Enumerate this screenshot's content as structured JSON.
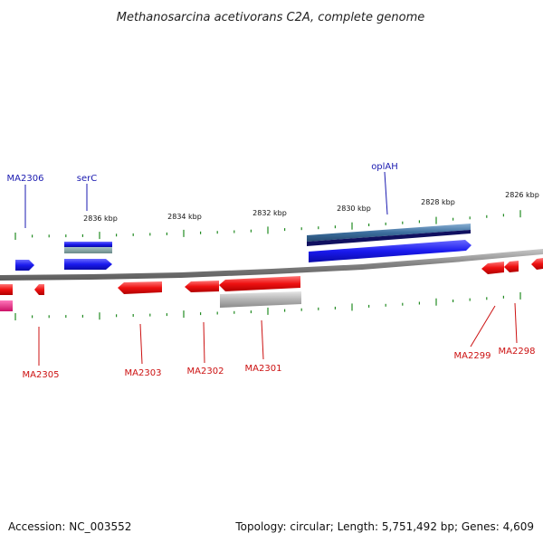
{
  "title": "Methanosarcina acetivorans C2A, complete genome",
  "footer": {
    "accession": "Accession: NC_003552",
    "summary": "Topology: circular; Length: 5,751,492 bp; Genes: 4,609"
  },
  "scale_labels": [
    "2836 kbp",
    "2834 kbp",
    "2832 kbp",
    "2830 kbp",
    "2828 kbp",
    "2826 kbp"
  ],
  "gene_labels": {
    "MA2306": "MA2306",
    "serC": "serC",
    "oplAH": "oplAH",
    "MA2305": "MA2305",
    "MA2303": "MA2303",
    "MA2302": "MA2302",
    "MA2301": "MA2301",
    "MA2299": "MA2299",
    "MA2298": "MA2298"
  },
  "colors": {
    "forward_cds": "#1a1aee",
    "reverse_cds": "#ee1111",
    "forward_label": "#1a1ab0",
    "reverse_label": "#cc1111",
    "backbone": "#888888",
    "tick": "#228b22",
    "forward_orf": "#3c6e9e",
    "forward_orf_dark": "#101060",
    "forward_gray": "#7a9a9a",
    "reverse_gray": "#aaaaaa",
    "magenta": "#ee2288"
  }
}
